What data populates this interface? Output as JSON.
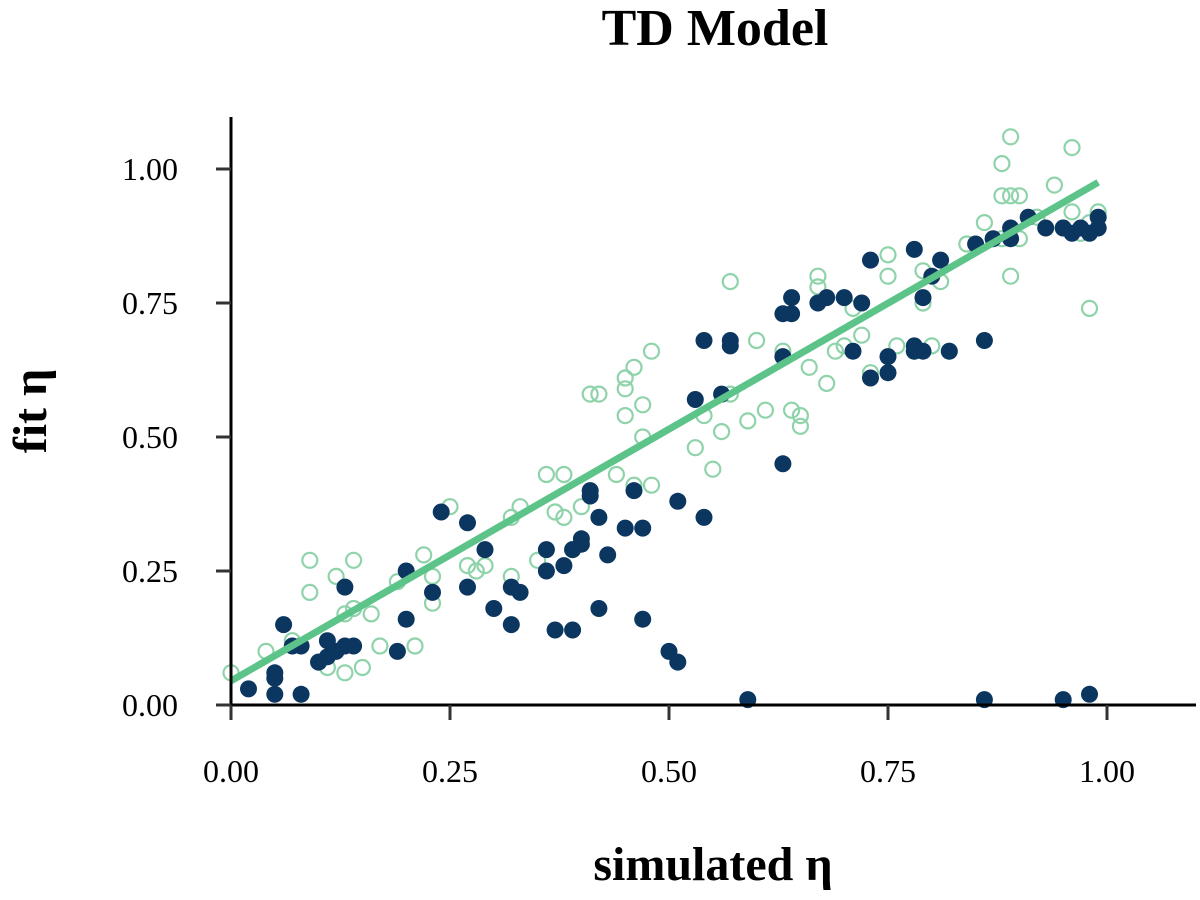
{
  "chart_data": {
    "type": "scatter",
    "title": "TD Model",
    "xlabel": "simulated η",
    "ylabel": "fit η",
    "xlim": [
      0.0,
      1.0
    ],
    "ylim": [
      0.0,
      1.1
    ],
    "xticks": [
      "0.00",
      "0.25",
      "0.50",
      "0.75",
      "1.00"
    ],
    "yticks": [
      "0.00",
      "0.25",
      "0.50",
      "0.75",
      "1.00"
    ],
    "grid": false,
    "legend": "none",
    "colors": {
      "filled": "#0b3660",
      "open": "#8fd3aa",
      "fit_line": "#5cc389"
    },
    "fit_line": {
      "x": [
        0.0,
        0.99
      ],
      "y": [
        0.045,
        0.975
      ]
    },
    "series": [
      {
        "marker": "open-circle",
        "points": [
          [
            0.0,
            0.06
          ],
          [
            0.04,
            0.1
          ],
          [
            0.07,
            0.12
          ],
          [
            0.09,
            0.21
          ],
          [
            0.09,
            0.27
          ],
          [
            0.1,
            0.08
          ],
          [
            0.11,
            0.07
          ],
          [
            0.12,
            0.24
          ],
          [
            0.13,
            0.17
          ],
          [
            0.13,
            0.06
          ],
          [
            0.14,
            0.27
          ],
          [
            0.14,
            0.18
          ],
          [
            0.15,
            0.07
          ],
          [
            0.16,
            0.17
          ],
          [
            0.17,
            0.11
          ],
          [
            0.19,
            0.23
          ],
          [
            0.21,
            0.11
          ],
          [
            0.22,
            0.28
          ],
          [
            0.23,
            0.24
          ],
          [
            0.23,
            0.19
          ],
          [
            0.25,
            0.37
          ],
          [
            0.27,
            0.26
          ],
          [
            0.28,
            0.25
          ],
          [
            0.29,
            0.26
          ],
          [
            0.32,
            0.35
          ],
          [
            0.32,
            0.24
          ],
          [
            0.33,
            0.37
          ],
          [
            0.35,
            0.27
          ],
          [
            0.36,
            0.43
          ],
          [
            0.37,
            0.36
          ],
          [
            0.38,
            0.35
          ],
          [
            0.38,
            0.43
          ],
          [
            0.39,
            0.29
          ],
          [
            0.4,
            0.37
          ],
          [
            0.41,
            0.58
          ],
          [
            0.42,
            0.58
          ],
          [
            0.44,
            0.43
          ],
          [
            0.45,
            0.54
          ],
          [
            0.45,
            0.61
          ],
          [
            0.45,
            0.59
          ],
          [
            0.46,
            0.63
          ],
          [
            0.46,
            0.41
          ],
          [
            0.47,
            0.56
          ],
          [
            0.47,
            0.5
          ],
          [
            0.48,
            0.66
          ],
          [
            0.48,
            0.41
          ],
          [
            0.53,
            0.48
          ],
          [
            0.54,
            0.54
          ],
          [
            0.55,
            0.44
          ],
          [
            0.56,
            0.51
          ],
          [
            0.57,
            0.58
          ],
          [
            0.57,
            0.79
          ],
          [
            0.59,
            0.53
          ],
          [
            0.6,
            0.68
          ],
          [
            0.61,
            0.55
          ],
          [
            0.63,
            0.66
          ],
          [
            0.64,
            0.55
          ],
          [
            0.65,
            0.54
          ],
          [
            0.65,
            0.52
          ],
          [
            0.66,
            0.63
          ],
          [
            0.67,
            0.8
          ],
          [
            0.67,
            0.78
          ],
          [
            0.68,
            0.6
          ],
          [
            0.69,
            0.66
          ],
          [
            0.7,
            0.67
          ],
          [
            0.71,
            0.74
          ],
          [
            0.72,
            0.69
          ],
          [
            0.73,
            0.62
          ],
          [
            0.75,
            0.8
          ],
          [
            0.75,
            0.84
          ],
          [
            0.76,
            0.67
          ],
          [
            0.78,
            0.66
          ],
          [
            0.79,
            0.75
          ],
          [
            0.79,
            0.81
          ],
          [
            0.8,
            0.67
          ],
          [
            0.81,
            0.79
          ],
          [
            0.82,
            0.66
          ],
          [
            0.84,
            0.86
          ],
          [
            0.86,
            0.9
          ],
          [
            0.88,
            0.87
          ],
          [
            0.88,
            1.01
          ],
          [
            0.88,
            0.95
          ],
          [
            0.89,
            1.06
          ],
          [
            0.89,
            0.95
          ],
          [
            0.89,
            0.8
          ],
          [
            0.9,
            0.95
          ],
          [
            0.9,
            0.87
          ],
          [
            0.92,
            0.91
          ],
          [
            0.94,
            0.97
          ],
          [
            0.95,
            0.89
          ],
          [
            0.96,
            1.04
          ],
          [
            0.96,
            0.92
          ],
          [
            0.97,
            0.88
          ],
          [
            0.98,
            0.74
          ],
          [
            0.98,
            0.9
          ],
          [
            0.99,
            0.92
          ]
        ]
      },
      {
        "marker": "filled-circle",
        "points": [
          [
            0.02,
            0.03
          ],
          [
            0.05,
            0.02
          ],
          [
            0.05,
            0.06
          ],
          [
            0.05,
            0.05
          ],
          [
            0.06,
            0.15
          ],
          [
            0.07,
            0.11
          ],
          [
            0.08,
            0.11
          ],
          [
            0.08,
            0.02
          ],
          [
            0.1,
            0.08
          ],
          [
            0.11,
            0.09
          ],
          [
            0.11,
            0.12
          ],
          [
            0.12,
            0.1
          ],
          [
            0.13,
            0.11
          ],
          [
            0.13,
            0.22
          ],
          [
            0.14,
            0.11
          ],
          [
            0.19,
            0.1
          ],
          [
            0.2,
            0.16
          ],
          [
            0.2,
            0.25
          ],
          [
            0.23,
            0.21
          ],
          [
            0.24,
            0.36
          ],
          [
            0.27,
            0.34
          ],
          [
            0.27,
            0.22
          ],
          [
            0.29,
            0.29
          ],
          [
            0.3,
            0.18
          ],
          [
            0.32,
            0.15
          ],
          [
            0.32,
            0.22
          ],
          [
            0.33,
            0.21
          ],
          [
            0.36,
            0.29
          ],
          [
            0.36,
            0.25
          ],
          [
            0.37,
            0.14
          ],
          [
            0.38,
            0.26
          ],
          [
            0.39,
            0.14
          ],
          [
            0.39,
            0.29
          ],
          [
            0.4,
            0.31
          ],
          [
            0.4,
            0.3
          ],
          [
            0.41,
            0.4
          ],
          [
            0.41,
            0.39
          ],
          [
            0.42,
            0.35
          ],
          [
            0.42,
            0.18
          ],
          [
            0.43,
            0.28
          ],
          [
            0.45,
            0.33
          ],
          [
            0.46,
            0.4
          ],
          [
            0.47,
            0.33
          ],
          [
            0.47,
            0.16
          ],
          [
            0.5,
            0.1
          ],
          [
            0.51,
            0.08
          ],
          [
            0.51,
            0.38
          ],
          [
            0.53,
            0.57
          ],
          [
            0.54,
            0.68
          ],
          [
            0.54,
            0.35
          ],
          [
            0.56,
            0.58
          ],
          [
            0.57,
            0.67
          ],
          [
            0.57,
            0.68
          ],
          [
            0.59,
            0.01
          ],
          [
            0.63,
            0.45
          ],
          [
            0.63,
            0.73
          ],
          [
            0.63,
            0.65
          ],
          [
            0.64,
            0.73
          ],
          [
            0.64,
            0.76
          ],
          [
            0.67,
            0.75
          ],
          [
            0.68,
            0.76
          ],
          [
            0.7,
            0.76
          ],
          [
            0.71,
            0.66
          ],
          [
            0.72,
            0.75
          ],
          [
            0.73,
            0.83
          ],
          [
            0.73,
            0.61
          ],
          [
            0.75,
            0.65
          ],
          [
            0.75,
            0.62
          ],
          [
            0.78,
            0.85
          ],
          [
            0.78,
            0.67
          ],
          [
            0.78,
            0.66
          ],
          [
            0.79,
            0.66
          ],
          [
            0.79,
            0.76
          ],
          [
            0.8,
            0.8
          ],
          [
            0.81,
            0.83
          ],
          [
            0.82,
            0.66
          ],
          [
            0.85,
            0.86
          ],
          [
            0.86,
            0.68
          ],
          [
            0.86,
            0.01
          ],
          [
            0.87,
            0.87
          ],
          [
            0.89,
            0.87
          ],
          [
            0.89,
            0.89
          ],
          [
            0.91,
            0.91
          ],
          [
            0.93,
            0.89
          ],
          [
            0.95,
            0.89
          ],
          [
            0.95,
            0.01
          ],
          [
            0.96,
            0.88
          ],
          [
            0.97,
            0.89
          ],
          [
            0.98,
            0.88
          ],
          [
            0.98,
            0.02
          ],
          [
            0.99,
            0.89
          ],
          [
            0.99,
            0.91
          ]
        ]
      }
    ]
  }
}
